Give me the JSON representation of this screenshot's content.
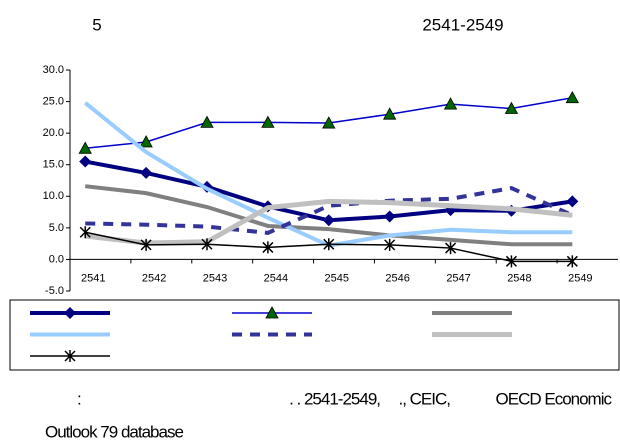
{
  "chart_data": {
    "type": "line",
    "title_number": "5",
    "title_years": "2541-2549",
    "categories": [
      "2541",
      "2542",
      "2543",
      "2544",
      "2545",
      "2546",
      "2547",
      "2548",
      "2549"
    ],
    "ylim": [
      -5,
      30
    ],
    "yticks": [
      {
        "value": -5,
        "label": "-5.0"
      },
      {
        "value": 0,
        "label": "0.0"
      },
      {
        "value": 5,
        "label": "5.0"
      },
      {
        "value": 10,
        "label": "10.0"
      },
      {
        "value": 15,
        "label": "15.0"
      },
      {
        "value": 20,
        "label": "20.0"
      },
      {
        "value": 25,
        "label": "25.0"
      },
      {
        "value": 30,
        "label": "30.0"
      }
    ],
    "grid": false,
    "series": [
      {
        "color": "#000080",
        "width": 4,
        "marker": "diamond",
        "values": [
          15.5,
          13.7,
          11.5,
          8.4,
          6.2,
          6.8,
          7.8,
          7.7,
          9.2
        ]
      },
      {
        "color": "#0000cc",
        "width": 1.5,
        "marker": "triangle",
        "marker_color": "#006600",
        "values": [
          17.6,
          18.6,
          21.7,
          21.7,
          21.6,
          23.0,
          24.6,
          23.9,
          25.6
        ]
      },
      {
        "color": "#808080",
        "width": 4,
        "values": [
          11.6,
          10.5,
          8.3,
          5.3,
          4.8,
          3.8,
          3.1,
          2.4,
          2.4
        ]
      },
      {
        "color": "#99ccff",
        "width": 4,
        "values": [
          24.8,
          17.0,
          11.2,
          6.6,
          2.2,
          3.8,
          4.7,
          4.3,
          4.3
        ]
      },
      {
        "color": "#333399",
        "width": 4,
        "dashed": true,
        "values": [
          5.7,
          5.5,
          5.2,
          4.2,
          8.5,
          9.3,
          9.6,
          11.3,
          7.0
        ]
      },
      {
        "color": "#c0c0c0",
        "width": 5,
        "values": [
          3.7,
          2.6,
          2.8,
          8.2,
          9.2,
          9.0,
          8.5,
          8.0,
          7.0
        ]
      },
      {
        "color": "#000000",
        "width": 1.5,
        "marker": "asterisk",
        "values": [
          4.3,
          2.3,
          2.4,
          1.9,
          2.4,
          2.3,
          1.8,
          -0.3,
          -0.3
        ]
      }
    ],
    "source": [
      ":",
      ". . 2541-2549,",
      "., CEIC,",
      "OECD Economic",
      "Outlook 79 database"
    ]
  }
}
